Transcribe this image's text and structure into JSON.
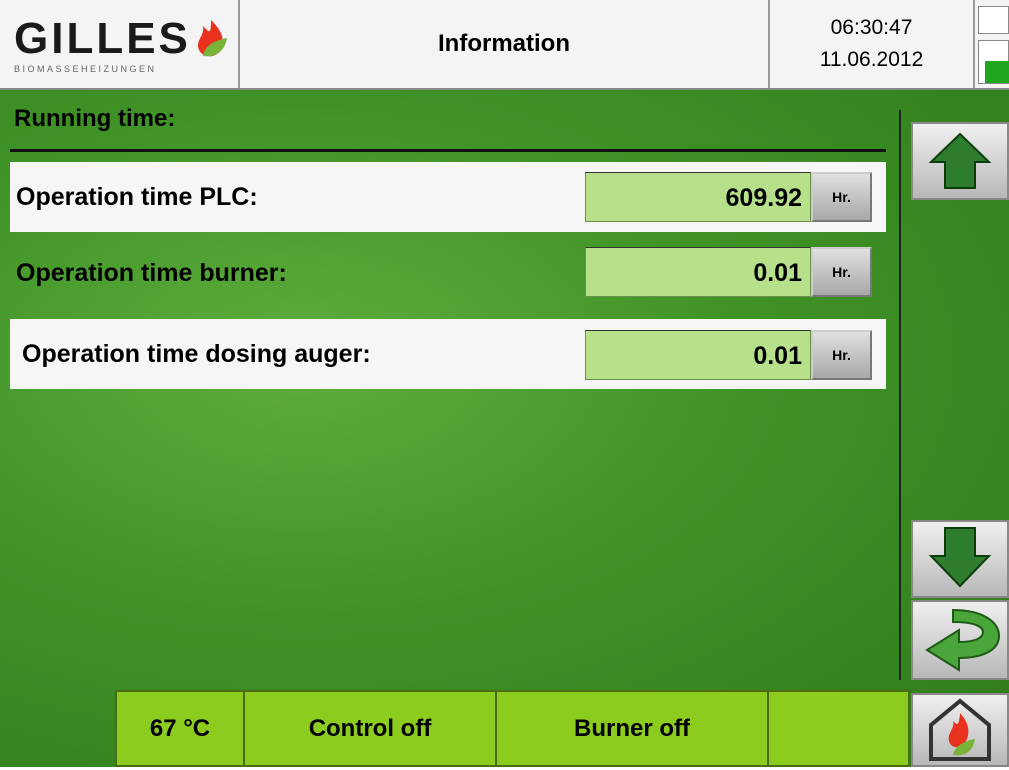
{
  "header": {
    "logo": "GILLES",
    "logo_subtitle": "BIOMASSEHEIZUNGEN",
    "title": "Information",
    "time": "06:30:47",
    "date": "11.06.2012"
  },
  "section": {
    "title": "Running time:"
  },
  "rows": [
    {
      "label": "Operation time PLC:",
      "value": "609.92",
      "unit": "Hr."
    },
    {
      "label": "Operation time burner:",
      "value": "0.01",
      "unit": "Hr."
    },
    {
      "label": "Operation time dosing auger:",
      "value": "0.01",
      "unit": "Hr."
    }
  ],
  "status_bar": {
    "temperature": "67 °C",
    "control": "Control off",
    "burner": "Burner off"
  }
}
